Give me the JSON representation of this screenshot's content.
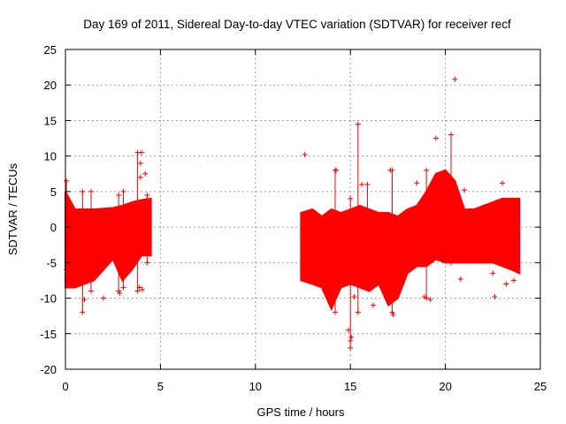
{
  "chart_data": {
    "type": "scatter",
    "title": "Day 169 of 2011, Sidereal Day-to-day VTEC variation (SDTVAR) for receiver recf",
    "xlabel": "GPS time / hours",
    "ylabel": "SDTVAR / TECUs",
    "xlim": [
      0,
      25
    ],
    "ylim": [
      -20,
      25
    ],
    "xticks": [
      0,
      5,
      10,
      15,
      20,
      25
    ],
    "yticks": [
      -20,
      -15,
      -10,
      -5,
      0,
      5,
      10,
      15,
      20,
      25
    ],
    "grid": true,
    "series": [
      {
        "name": "SDTVAR",
        "color": "#ff0000",
        "marker": "+",
        "envelope": [
          {
            "x": 0.0,
            "lo": -8.5,
            "hi": 5.0
          },
          {
            "x": 0.5,
            "lo": -8.5,
            "hi": 2.5
          },
          {
            "x": 1.0,
            "lo": -8.0,
            "hi": 2.5
          },
          {
            "x": 1.5,
            "lo": -7.5,
            "hi": 2.5
          },
          {
            "x": 2.0,
            "lo": -6.0,
            "hi": 2.6
          },
          {
            "x": 2.5,
            "lo": -4.5,
            "hi": 2.7
          },
          {
            "x": 3.0,
            "lo": -7.5,
            "hi": 3.0
          },
          {
            "x": 3.5,
            "lo": -6.0,
            "hi": 3.5
          },
          {
            "x": 4.0,
            "lo": -4.0,
            "hi": 3.8
          },
          {
            "x": 4.5,
            "lo": -4.0,
            "hi": 4.0
          },
          {
            "x": 12.4,
            "lo": -7.5,
            "hi": 2.0
          },
          {
            "x": 13.0,
            "lo": -8.0,
            "hi": 2.5
          },
          {
            "x": 13.5,
            "lo": -8.5,
            "hi": 1.5
          },
          {
            "x": 14.0,
            "lo": -11.5,
            "hi": 2.5
          },
          {
            "x": 14.5,
            "lo": -8.5,
            "hi": 2.0
          },
          {
            "x": 15.0,
            "lo": -8.0,
            "hi": 2.5
          },
          {
            "x": 15.5,
            "lo": -8.5,
            "hi": 3.0
          },
          {
            "x": 16.0,
            "lo": -9.0,
            "hi": 2.5
          },
          {
            "x": 16.5,
            "lo": -8.0,
            "hi": 2.0
          },
          {
            "x": 17.0,
            "lo": -11.0,
            "hi": 2.0
          },
          {
            "x": 17.5,
            "lo": -10.0,
            "hi": 1.5
          },
          {
            "x": 18.0,
            "lo": -6.5,
            "hi": 2.5
          },
          {
            "x": 18.5,
            "lo": -5.5,
            "hi": 3.0
          },
          {
            "x": 19.0,
            "lo": -5.5,
            "hi": 5.0
          },
          {
            "x": 19.5,
            "lo": -4.5,
            "hi": 7.5
          },
          {
            "x": 20.0,
            "lo": -5.0,
            "hi": 8.0
          },
          {
            "x": 20.5,
            "lo": -5.0,
            "hi": 6.5
          },
          {
            "x": 21.0,
            "lo": -5.0,
            "hi": 2.5
          },
          {
            "x": 21.5,
            "lo": -5.0,
            "hi": 2.5
          },
          {
            "x": 22.0,
            "lo": -5.0,
            "hi": 3.0
          },
          {
            "x": 22.5,
            "lo": -5.0,
            "hi": 3.5
          },
          {
            "x": 23.0,
            "lo": -5.5,
            "hi": 4.0
          },
          {
            "x": 23.5,
            "lo": -6.0,
            "hi": 4.0
          },
          {
            "x": 23.9,
            "lo": -6.5,
            "hi": 4.0
          }
        ],
        "spikes": [
          {
            "x": 0.05,
            "lo": -6.0,
            "hi": 6.5
          },
          {
            "x": 0.9,
            "lo": -12.0,
            "hi": 5.0
          },
          {
            "x": 1.35,
            "lo": -9.0,
            "hi": 5.0
          },
          {
            "x": 2.8,
            "lo": -9.0,
            "hi": 4.5
          },
          {
            "x": 3.05,
            "lo": -8.5,
            "hi": 5.0
          },
          {
            "x": 3.8,
            "lo": -9.0,
            "hi": 10.5
          },
          {
            "x": 4.3,
            "lo": -5.0,
            "hi": 4.5
          },
          {
            "x": 14.2,
            "lo": -12.0,
            "hi": 8.0
          },
          {
            "x": 15.0,
            "lo": -17.0,
            "hi": 4.0
          },
          {
            "x": 15.4,
            "lo": -12.0,
            "hi": 14.5
          },
          {
            "x": 15.9,
            "lo": -8.0,
            "hi": 6.0
          },
          {
            "x": 17.2,
            "lo": -12.0,
            "hi": 8.0
          },
          {
            "x": 19.0,
            "lo": -10.0,
            "hi": 8.0
          },
          {
            "x": 20.3,
            "lo": -5.0,
            "hi": 13.0
          }
        ],
        "outliers": [
          {
            "x": 1.0,
            "y": -10.2
          },
          {
            "x": 2.0,
            "y": -10.0
          },
          {
            "x": 2.85,
            "y": -9.3
          },
          {
            "x": 3.95,
            "y": 9.0
          },
          {
            "x": 3.95,
            "y": 7.0
          },
          {
            "x": 4.2,
            "y": 7.5
          },
          {
            "x": 4.0,
            "y": 10.5
          },
          {
            "x": 3.9,
            "y": -8.5
          },
          {
            "x": 4.05,
            "y": -8.8
          },
          {
            "x": 12.6,
            "y": 10.2
          },
          {
            "x": 14.25,
            "y": 8.0
          },
          {
            "x": 14.9,
            "y": -14.5
          },
          {
            "x": 15.0,
            "y": -16.0
          },
          {
            "x": 15.05,
            "y": -15.5
          },
          {
            "x": 15.2,
            "y": -9.8
          },
          {
            "x": 15.6,
            "y": 6.0
          },
          {
            "x": 16.2,
            "y": -11.0
          },
          {
            "x": 17.1,
            "y": 8.0
          },
          {
            "x": 17.25,
            "y": -12.3
          },
          {
            "x": 18.5,
            "y": 6.2
          },
          {
            "x": 18.9,
            "y": -9.8
          },
          {
            "x": 19.2,
            "y": -10.2
          },
          {
            "x": 19.5,
            "y": 12.5
          },
          {
            "x": 19.6,
            "y": 5.5
          },
          {
            "x": 20.5,
            "y": 20.8
          },
          {
            "x": 20.8,
            "y": -7.3
          },
          {
            "x": 21.0,
            "y": 5.2
          },
          {
            "x": 22.5,
            "y": -6.5
          },
          {
            "x": 22.6,
            "y": -9.8
          },
          {
            "x": 23.0,
            "y": 6.2
          },
          {
            "x": 23.2,
            "y": -8.0
          },
          {
            "x": 23.6,
            "y": -7.5
          }
        ]
      }
    ]
  }
}
